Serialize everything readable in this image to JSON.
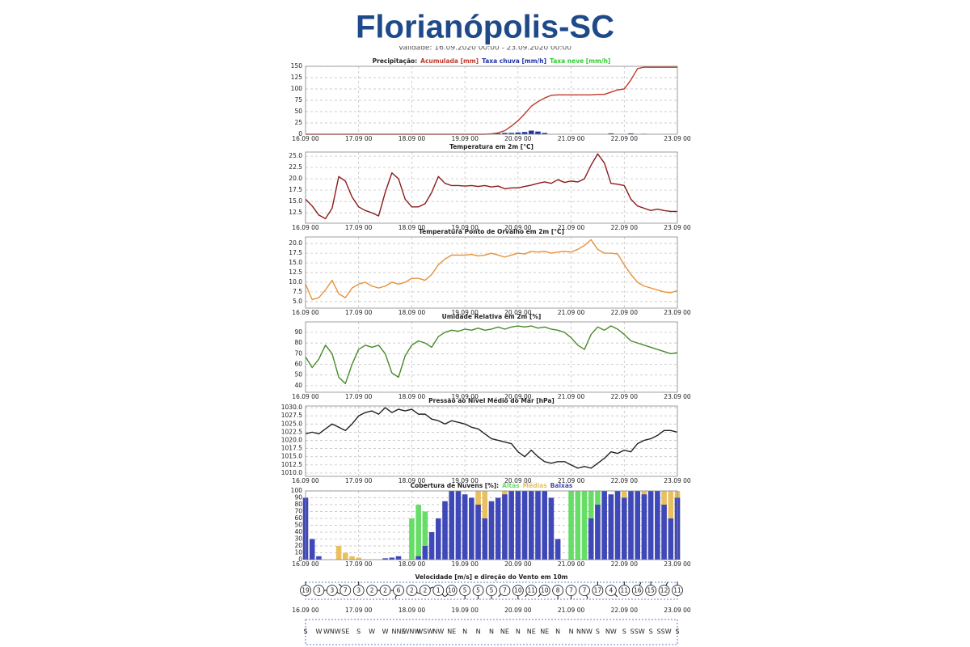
{
  "header": {
    "title": "Florianópolis-SC",
    "subtitle": "Validade: 16.09.2020 00:00 - 23.09.2020 00:00"
  },
  "chart_data": [
    {
      "type": "combo",
      "title": "Precipitação:",
      "legend": "title",
      "grid": true,
      "categories": [
        "16.09 00",
        null,
        null,
        null,
        null,
        null,
        null,
        null,
        "17.09 00",
        null,
        null,
        null,
        null,
        null,
        null,
        null,
        "18.09 00",
        null,
        null,
        null,
        null,
        null,
        null,
        null,
        "19.09 00",
        null,
        null,
        null,
        null,
        null,
        null,
        null,
        "20.09 00",
        null,
        null,
        null,
        null,
        null,
        null,
        null,
        "21.09 00",
        null,
        null,
        null,
        null,
        null,
        null,
        null,
        "22.09 00",
        null,
        null,
        null,
        null,
        null,
        null,
        null,
        "23.09 00"
      ],
      "ylim": [
        0,
        150
      ],
      "yticks": [
        0,
        25,
        50,
        75,
        100,
        125,
        150
      ],
      "series": [
        {
          "name": "Acumulada [mm]",
          "type": "line",
          "color": "#c0392b",
          "values": [
            0,
            0,
            0,
            0,
            0,
            0,
            0,
            0,
            0,
            0,
            0,
            0,
            0,
            0,
            0,
            0,
            0,
            0,
            0,
            0,
            0,
            0,
            0,
            0,
            0,
            0,
            0,
            0,
            1,
            3,
            8,
            18,
            30,
            45,
            62,
            72,
            80,
            86,
            87,
            87,
            87,
            87,
            87,
            87,
            88,
            88,
            93,
            98,
            100,
            120,
            145,
            148,
            148,
            148,
            148,
            148,
            148
          ]
        },
        {
          "name": "Taxa chuva [mm/h]",
          "type": "bar",
          "color": "#2233aa",
          "values": [
            0,
            0,
            0,
            0,
            0,
            0,
            0,
            0,
            0,
            0,
            0,
            0,
            0,
            0,
            0,
            0,
            0,
            0,
            0,
            0,
            0,
            0,
            0,
            0,
            0,
            0,
            0,
            0,
            1,
            2,
            3,
            3,
            4,
            5,
            8,
            6,
            3,
            0,
            0,
            0,
            0,
            0,
            0,
            0,
            0,
            0,
            2,
            0,
            0,
            2,
            0,
            1,
            0,
            0,
            0,
            0,
            0
          ]
        },
        {
          "name": "Taxa neve [mm/h]",
          "type": "bar",
          "color": "#33cc33",
          "values": [
            0,
            0,
            0,
            0,
            0,
            0,
            0,
            0,
            0,
            0,
            0,
            0,
            0,
            0,
            0,
            0,
            0,
            0,
            0,
            0,
            0,
            0,
            0,
            0,
            0,
            0,
            0,
            0,
            0,
            0,
            0,
            0,
            0,
            0,
            0,
            0,
            0,
            0,
            0,
            0,
            0,
            0,
            0,
            0,
            0,
            0,
            0,
            0,
            0,
            0,
            0,
            0,
            0,
            0,
            0,
            0,
            0
          ]
        }
      ]
    },
    {
      "type": "line",
      "title": "Temperatura em 2m [°C]",
      "grid": true,
      "categories": [
        "16.09 00",
        null,
        null,
        null,
        null,
        null,
        null,
        null,
        "17.09 00",
        null,
        null,
        null,
        null,
        null,
        null,
        null,
        "18.09 00",
        null,
        null,
        null,
        null,
        null,
        null,
        null,
        "19.09 00",
        null,
        null,
        null,
        null,
        null,
        null,
        null,
        "20.09 00",
        null,
        null,
        null,
        null,
        null,
        null,
        null,
        "21.09 00",
        null,
        null,
        null,
        null,
        null,
        null,
        null,
        "22.09 00",
        null,
        null,
        null,
        null,
        null,
        null,
        null,
        "23.09 00"
      ],
      "ylim": [
        10.2,
        25.9
      ],
      "yticks": [
        12.5,
        {
          "value": 15,
          "label": "15.0"
        },
        17.5,
        {
          "value": 20,
          "label": "20.0"
        },
        22.5,
        {
          "value": 25,
          "label": "25.0"
        }
      ],
      "series": [
        {
          "color": "#8b1a1a",
          "values": [
            15.5,
            14.0,
            12.0,
            11.2,
            13.5,
            20.5,
            19.5,
            16.0,
            13.8,
            13.0,
            12.5,
            11.8,
            17.0,
            21.3,
            20.0,
            15.5,
            13.8,
            13.8,
            14.5,
            17.0,
            20.5,
            19.0,
            18.5,
            18.5,
            18.4,
            18.5,
            18.3,
            18.5,
            18.2,
            18.4,
            17.8,
            18.0,
            18.0,
            18.3,
            18.6,
            19.0,
            19.3,
            19.0,
            19.8,
            19.2,
            19.5,
            19.3,
            20.0,
            23.0,
            25.5,
            23.5,
            19.0,
            18.8,
            18.5,
            15.5,
            14.0,
            13.5,
            13.0,
            13.3,
            13.0,
            12.8,
            12.8
          ]
        }
      ]
    },
    {
      "type": "line",
      "title": "Temperatura Ponto de Orvalho em 2m [°C]",
      "grid": true,
      "categories": [
        "16.09 00",
        null,
        null,
        null,
        null,
        null,
        null,
        null,
        "17.09 00",
        null,
        null,
        null,
        null,
        null,
        null,
        null,
        "18.09 00",
        null,
        null,
        null,
        null,
        null,
        null,
        null,
        "19.09 00",
        null,
        null,
        null,
        null,
        null,
        null,
        null,
        "20.09 00",
        null,
        null,
        null,
        null,
        null,
        null,
        null,
        "21.09 00",
        null,
        null,
        null,
        null,
        null,
        null,
        null,
        "22.09 00",
        null,
        null,
        null,
        null,
        null,
        null,
        null,
        "23.09 00"
      ],
      "ylim": [
        3.3,
        21.7
      ],
      "yticks": [
        {
          "value": 5,
          "label": "5.0"
        },
        7.5,
        {
          "value": 10,
          "label": "10.0"
        },
        12.5,
        {
          "value": 15,
          "label": "15.0"
        },
        17.5,
        {
          "value": 20,
          "label": "20.0"
        }
      ],
      "series": [
        {
          "color": "#e8913a",
          "values": [
            9.5,
            5.5,
            6.0,
            8.0,
            10.5,
            7.0,
            6.0,
            8.5,
            9.5,
            10.0,
            9.0,
            8.5,
            9.0,
            10.0,
            9.5,
            10.0,
            11.0,
            11.0,
            10.5,
            12.0,
            14.5,
            16.0,
            17.0,
            17.0,
            17.0,
            17.2,
            16.8,
            17.0,
            17.5,
            17.0,
            16.5,
            17.0,
            17.5,
            17.3,
            18.0,
            17.8,
            18.0,
            17.5,
            17.8,
            18.0,
            17.8,
            18.5,
            19.5,
            21.0,
            18.5,
            17.5,
            17.5,
            17.3,
            14.5,
            12.0,
            10.0,
            9.0,
            8.5,
            8.0,
            7.5,
            7.3,
            7.8
          ]
        }
      ]
    },
    {
      "type": "line",
      "title": "Umidade Relativa em 2m [%]",
      "grid": true,
      "categories": [
        "16.09 00",
        null,
        null,
        null,
        null,
        null,
        null,
        null,
        "17.09 00",
        null,
        null,
        null,
        null,
        null,
        null,
        null,
        "18.09 00",
        null,
        null,
        null,
        null,
        null,
        null,
        null,
        "19.09 00",
        null,
        null,
        null,
        null,
        null,
        null,
        null,
        "20.09 00",
        null,
        null,
        null,
        null,
        null,
        null,
        null,
        "21.09 00",
        null,
        null,
        null,
        null,
        null,
        null,
        null,
        "22.09 00",
        null,
        null,
        null,
        null,
        null,
        null,
        null,
        "23.09 00"
      ],
      "ylim": [
        33.9,
        99.8
      ],
      "yticks": [
        40,
        50,
        60,
        70,
        80,
        90
      ],
      "series": [
        {
          "color": "#4a8a2a",
          "values": [
            67,
            57,
            65,
            78,
            70,
            48,
            42,
            60,
            74,
            78,
            76,
            78,
            70,
            52,
            48,
            68,
            78,
            82,
            80,
            76,
            86,
            90,
            92,
            91,
            93,
            92,
            94,
            92,
            93,
            95,
            93,
            95,
            96,
            95,
            96,
            94,
            95,
            93,
            92,
            90,
            85,
            78,
            74,
            88,
            95,
            92,
            96,
            93,
            88,
            82,
            80,
            78,
            76,
            74,
            72,
            70,
            71
          ]
        }
      ]
    },
    {
      "type": "line",
      "title": "Pressão ao Nível Médio do Mar [hPa]",
      "grid": true,
      "categories": [
        "16.09 00",
        null,
        null,
        null,
        null,
        null,
        null,
        null,
        "17.09 00",
        null,
        null,
        null,
        null,
        null,
        null,
        null,
        "18.09 00",
        null,
        null,
        null,
        null,
        null,
        null,
        null,
        "19.09 00",
        null,
        null,
        null,
        null,
        null,
        null,
        null,
        "20.09 00",
        null,
        null,
        null,
        null,
        null,
        null,
        null,
        "21.09 00",
        null,
        null,
        null,
        null,
        null,
        null,
        null,
        "22.09 00",
        null,
        null,
        null,
        null,
        null,
        null,
        null,
        "23.09 00"
      ],
      "ylim": [
        1009.0,
        1030.5
      ],
      "yticks": [
        {
          "value": 1010,
          "label": "1010.0"
        },
        1012.5,
        {
          "value": 1015,
          "label": "1015.0"
        },
        1017.5,
        {
          "value": 1020,
          "label": "1020.0"
        },
        1022.5,
        {
          "value": 1025,
          "label": "1025.0"
        },
        1027.5,
        {
          "value": 1030,
          "label": "1030.0"
        }
      ],
      "series": [
        {
          "color": "#222222",
          "values": [
            1022,
            1022.5,
            1022,
            1023.5,
            1025,
            1024,
            1023,
            1025,
            1027.5,
            1028.5,
            1029,
            1028,
            1030,
            1028.5,
            1029.5,
            1029,
            1029.5,
            1028,
            1028,
            1026.5,
            1026,
            1025,
            1026,
            1025.5,
            1025,
            1024,
            1023.5,
            1022,
            1020.5,
            1020,
            1019.5,
            1019,
            1016.5,
            1015,
            1017,
            1015,
            1013.5,
            1013,
            1013.5,
            1013.5,
            1012.5,
            1011.5,
            1012,
            1011.5,
            1013,
            1014.5,
            1016.5,
            1016,
            1017,
            1016.5,
            1019,
            1020,
            1020.5,
            1021.5,
            1023,
            1023,
            1022.5
          ]
        }
      ]
    },
    {
      "type": "bar",
      "title": "Cobertura de Nuvens [%]:",
      "legend": "title",
      "grid": true,
      "categories": [
        "16.09 00",
        null,
        null,
        null,
        null,
        null,
        null,
        null,
        "17.09 00",
        null,
        null,
        null,
        null,
        null,
        null,
        null,
        "18.09 00",
        null,
        null,
        null,
        null,
        null,
        null,
        null,
        "19.09 00",
        null,
        null,
        null,
        null,
        null,
        null,
        null,
        "20.09 00",
        null,
        null,
        null,
        null,
        null,
        null,
        null,
        "21.09 00",
        null,
        null,
        null,
        null,
        null,
        null,
        null,
        "22.09 00",
        null,
        null,
        null,
        null,
        null,
        null,
        null,
        "23.09 00"
      ],
      "ylim": [
        0,
        100
      ],
      "yticks": [
        0,
        10,
        20,
        30,
        40,
        50,
        60,
        70,
        80,
        90,
        100
      ],
      "series": [
        {
          "name": "Altas",
          "color": "#66dd66",
          "values": [
            0,
            0,
            0,
            0,
            0,
            0,
            0,
            0,
            0,
            0,
            0,
            0,
            0,
            0,
            0,
            0,
            60,
            80,
            70,
            0,
            0,
            0,
            0,
            0,
            0,
            0,
            0,
            0,
            0,
            0,
            0,
            0,
            0,
            0,
            0,
            0,
            0,
            0,
            0,
            0,
            100,
            100,
            100,
            100,
            100,
            0,
            0,
            0,
            0,
            0,
            0,
            0,
            0,
            0,
            0,
            0,
            0
          ]
        },
        {
          "name": "Médias",
          "color": "#e8c060",
          "values": [
            0,
            0,
            0,
            0,
            0,
            20,
            10,
            5,
            3,
            0,
            0,
            0,
            0,
            0,
            0,
            0,
            0,
            0,
            0,
            0,
            0,
            10,
            30,
            60,
            90,
            80,
            100,
            100,
            80,
            60,
            100,
            90,
            80,
            60,
            40,
            30,
            20,
            10,
            0,
            0,
            0,
            0,
            0,
            0,
            60,
            80,
            70,
            100,
            100,
            90,
            80,
            100,
            100,
            90,
            100,
            100,
            100
          ]
        },
        {
          "name": "Baixas",
          "color": "#3f48b8",
          "values": [
            90,
            30,
            5,
            0,
            0,
            0,
            0,
            0,
            0,
            0,
            0,
            0,
            2,
            3,
            5,
            0,
            0,
            5,
            20,
            40,
            60,
            85,
            100,
            100,
            95,
            90,
            80,
            60,
            85,
            90,
            95,
            100,
            100,
            100,
            100,
            100,
            100,
            90,
            30,
            0,
            0,
            0,
            0,
            60,
            80,
            100,
            95,
            100,
            90,
            100,
            100,
            95,
            100,
            100,
            80,
            60,
            90
          ]
        }
      ]
    },
    {
      "type": "wind",
      "title": "Velocidade [m/s] e direção do Vento em 10m",
      "categories": [
        "16.09 00",
        null,
        null,
        null,
        "17.09 00",
        null,
        null,
        null,
        "18.09 00",
        null,
        null,
        null,
        "19.09 00",
        null,
        null,
        null,
        "20.09 00",
        null,
        null,
        null,
        "21.09 00",
        null,
        null,
        null,
        "22.09 00",
        null,
        null,
        null,
        "23.09 00"
      ],
      "values": [
        19,
        3,
        3,
        7,
        3,
        2,
        2,
        6,
        2,
        2,
        1,
        10,
        5,
        5,
        5,
        7,
        10,
        11,
        10,
        8,
        7,
        7,
        17,
        4,
        11,
        16,
        15,
        12,
        11
      ],
      "directions": [
        "S",
        "W",
        "WNW",
        "SE",
        "S",
        "W",
        "W",
        "NNE",
        "WNW",
        "WSW",
        "NW",
        "NE",
        "N",
        "N",
        "N",
        "NE",
        "N",
        "NE",
        "NE",
        "N",
        "N",
        "NNW",
        "S",
        "NW",
        "S",
        "SSW",
        "S",
        "SSW",
        "S"
      ]
    }
  ]
}
